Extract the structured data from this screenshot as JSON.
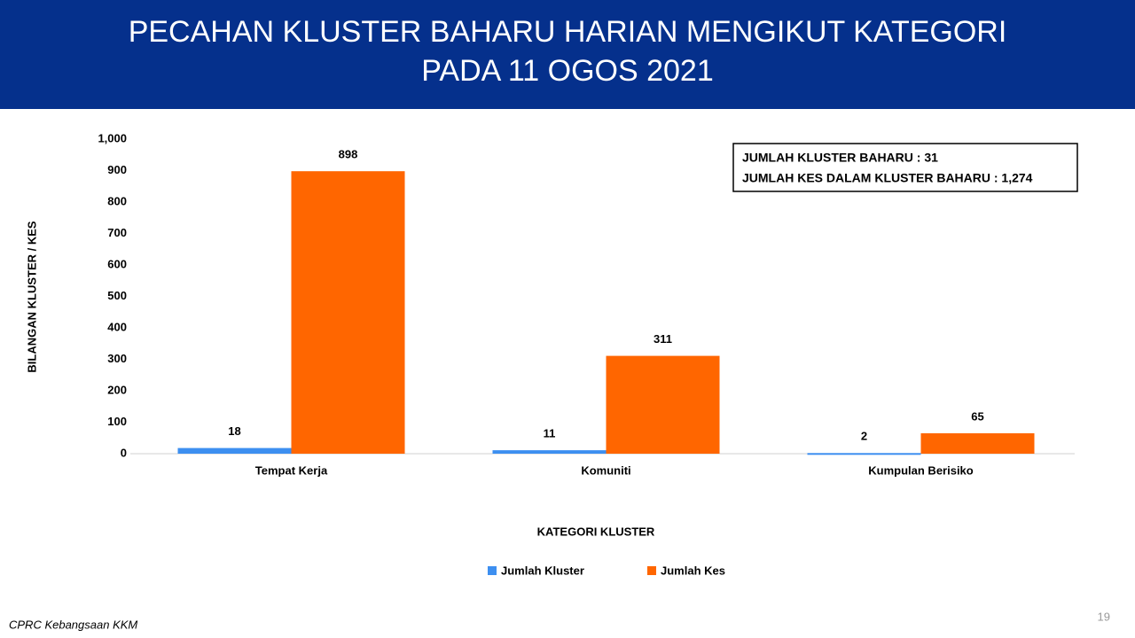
{
  "chart_data": {
    "type": "bar",
    "title": [
      "PECAHAN KLUSTER BAHARU HARIAN MENGIKUT KATEGORI",
      "PADA 11 OGOS 2021"
    ],
    "x_label": "KATEGORI KLUSTER",
    "y_label": "BILANGAN KLUSTER / KES",
    "categories": [
      "Tempat Kerja",
      "Komuniti",
      "Kumpulan Berisiko"
    ],
    "series": [
      {
        "name": "Jumlah Kluster",
        "color": "#3d8ff0",
        "values": [
          18,
          11,
          2
        ]
      },
      {
        "name": "Jumlah Kes",
        "color": "#ff6600",
        "values": [
          898,
          311,
          65
        ]
      }
    ],
    "ylim": [
      0,
      1000
    ],
    "yticks": [
      0,
      100,
      200,
      300,
      400,
      500,
      600,
      700,
      800,
      900,
      {
        "value": 1000,
        "label": "1,000"
      }
    ],
    "grid": false,
    "legend": "bottom",
    "annotations": [
      "JUMLAH KLUSTER BAHARU : 31",
      "JUMLAH KES DALAM KLUSTER BAHARU : 1,274"
    ]
  },
  "footer": {
    "source": "CPRC Kebangsaan KKM",
    "page": 19
  }
}
